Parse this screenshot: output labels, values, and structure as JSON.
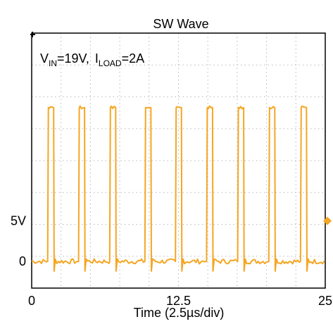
{
  "chart_data": {
    "type": "line",
    "title": "SW Wave",
    "xlabel": "Time (2.5µs/div)",
    "ylabel": "",
    "annotation": {
      "vin_symbol": "V",
      "vin_sub": "IN",
      "vin_value": "=19V,",
      "iload_symbol": "I",
      "iload_sub": "LOAD",
      "iload_value": "=2A"
    },
    "x_ticks": [
      {
        "value": 0,
        "label": "0"
      },
      {
        "value": 12.5,
        "label": "12.5"
      },
      {
        "value": 25,
        "label": "25"
      }
    ],
    "y_ticks": [
      {
        "value": 0,
        "label": "0"
      },
      {
        "value": 5,
        "label": "5V"
      }
    ],
    "xlim": [
      0,
      25
    ],
    "ylim": [
      -3.3,
      28.2
    ],
    "grid": true,
    "grid_divisions": {
      "x": 10,
      "y": 8
    },
    "series": [
      {
        "color": "#f5a623",
        "pulse_high": 19,
        "pulse_low": 0,
        "pulse_width": 0.45,
        "pulse_rise_times": [
          1.42,
          4.05,
          6.7,
          9.7,
          12.3,
          14.95,
          17.6,
          20.25,
          22.95
        ]
      }
    ],
    "trigger_marker_color": "#f5a623"
  }
}
